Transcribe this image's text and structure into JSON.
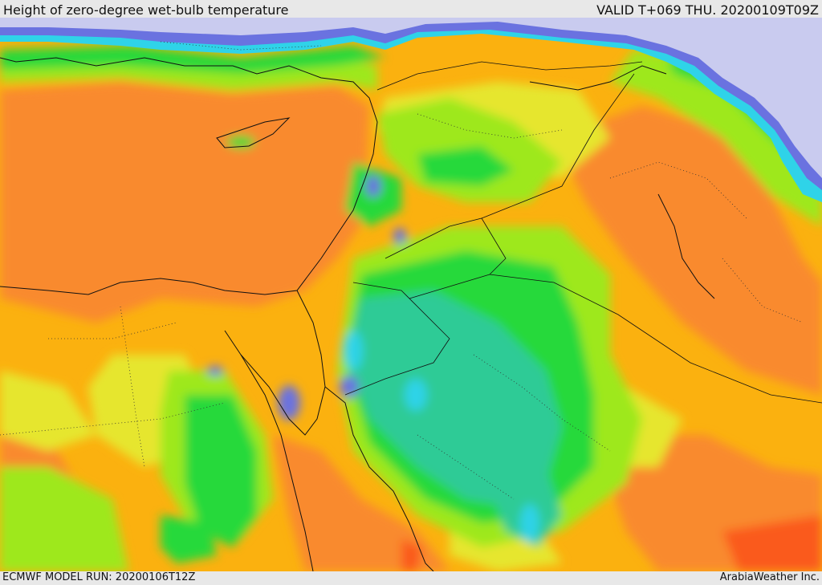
{
  "header": {
    "title": "Height of zero-degree wet-bulb temperature",
    "valid": "VALID T+069 THU. 20200109T09Z"
  },
  "footer": {
    "model_run": "ECMWF MODEL RUN: 20200106T12Z",
    "credit": "ArabiaWeather Inc."
  },
  "colors": {
    "very_high": "#fa5a1e",
    "high": "#f98a2d",
    "mid_high": "#fbb10f",
    "mid": "#e6e62e",
    "mid_low": "#9ee81e",
    "low": "#27d93a",
    "lower": "#2ecb96",
    "lowest": "#2fd3e8",
    "very_low": "#6a72e0",
    "minimal": "#c9cbef",
    "borders": "#111111"
  }
}
